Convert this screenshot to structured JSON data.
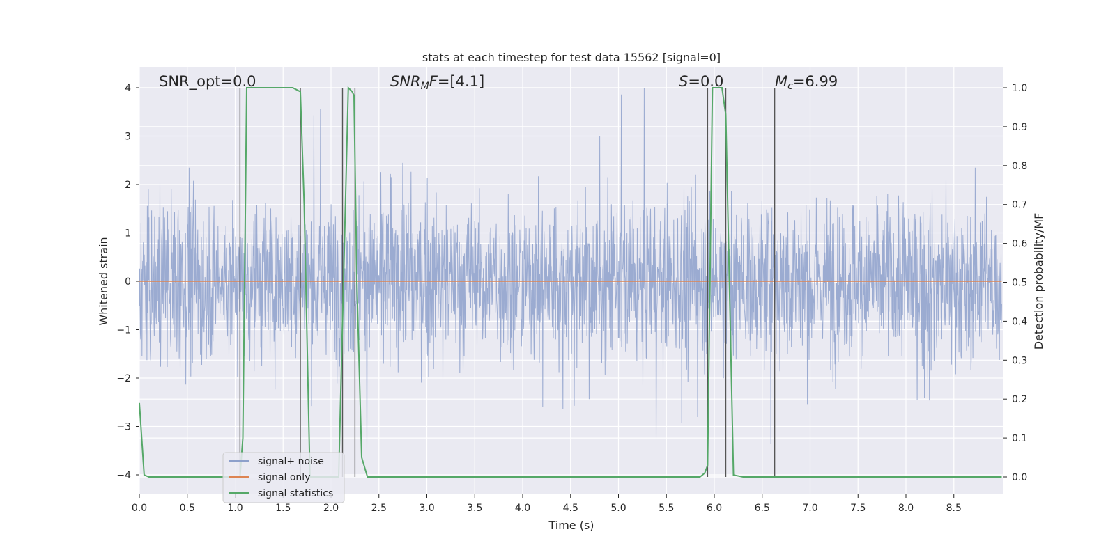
{
  "chart_data": {
    "type": "line",
    "title": "stats at each timestep for test data 15562 [signal=0]",
    "xlabel": "Time (s)",
    "ylabel": "Whitened strain",
    "y2label": "Detection probability/MF",
    "xlim": [
      0.0,
      9.0
    ],
    "ylim": [
      -4.4,
      4.4
    ],
    "y2lim": [
      -0.047,
      1.047
    ],
    "grid": true,
    "legend_position": "lower-left",
    "x_ticks": [
      "0.0",
      "0.5",
      "1.0",
      "1.5",
      "2.0",
      "2.5",
      "3.0",
      "3.5",
      "4.0",
      "4.5",
      "5.0",
      "5.5",
      "6.0",
      "6.5",
      "7.0",
      "7.5",
      "8.0",
      "8.5"
    ],
    "x_tick_values": [
      0.0,
      0.5,
      1.0,
      1.5,
      2.0,
      2.5,
      3.0,
      3.5,
      4.0,
      4.5,
      5.0,
      5.5,
      6.0,
      6.5,
      7.0,
      7.5,
      8.0,
      8.5
    ],
    "y_ticks": [
      "−4",
      "−3",
      "−2",
      "−1",
      "0",
      "1",
      "2",
      "3",
      "4"
    ],
    "y_tick_values": [
      -4,
      -3,
      -2,
      -1,
      0,
      1,
      2,
      3,
      4
    ],
    "y2_ticks": [
      "0.0",
      "0.1",
      "0.2",
      "0.3",
      "0.4",
      "0.5",
      "0.6",
      "0.7",
      "0.8",
      "0.9",
      "1.0"
    ],
    "y2_tick_values": [
      0.0,
      0.1,
      0.2,
      0.3,
      0.4,
      0.5,
      0.6,
      0.7,
      0.8,
      0.9,
      1.0
    ],
    "annotations": {
      "snr_opt": "SNR_opt=0.0",
      "snr_mf_main": "SNR",
      "snr_mf_sub": "M",
      "snr_mf_rest": "F=[4.1]",
      "s_main": "S",
      "s_rest": "=0.0",
      "mc_main": "M",
      "mc_sub": "c",
      "mc_rest": "=6.99"
    },
    "series": [
      {
        "name": "signal+ noise",
        "color": "#8da0cb",
        "description_points": "noise trace oscillating roughly between -2.5 and 3 whitened strain across 0-9 s",
        "noise_amplitude": 1.6
      },
      {
        "name": "signal only",
        "color": "#dd8452",
        "x": [
          0.0,
          9.0
        ],
        "y": [
          0.0,
          0.0
        ]
      },
      {
        "name": "signal statistics",
        "color": "#55a868",
        "axis": "right",
        "x": [
          0.0,
          0.05,
          0.1,
          0.15,
          1.05,
          1.08,
          1.12,
          1.6,
          1.68,
          1.72,
          1.78,
          2.08,
          2.12,
          2.18,
          2.22,
          2.24,
          2.27,
          2.32,
          2.38,
          5.85,
          5.9,
          5.93,
          5.98,
          6.08,
          6.12,
          6.2,
          6.3,
          9.0
        ],
        "y": [
          0.19,
          0.005,
          0.0,
          0.0,
          0.0,
          0.1,
          1.0,
          1.0,
          0.99,
          0.7,
          0.0,
          0.0,
          0.4,
          1.0,
          0.99,
          0.98,
          0.5,
          0.05,
          0.0,
          0.0,
          0.01,
          0.03,
          1.0,
          1.0,
          0.93,
          0.005,
          0.0,
          0.0
        ]
      }
    ],
    "vertical_markers": [
      1.05,
      1.68,
      2.12,
      2.25,
      5.93,
      6.12,
      6.63
    ],
    "spike_markers": [
      1.75,
      6.2
    ],
    "legend": [
      "signal+ noise",
      "signal only",
      "signal statistics"
    ],
    "colors": {
      "background": "#eaeaf2",
      "grid": "#ffffff",
      "noise": "#8da0cb",
      "signal": "#dd8452",
      "stats": "#55a868",
      "marker": "#555555"
    }
  }
}
